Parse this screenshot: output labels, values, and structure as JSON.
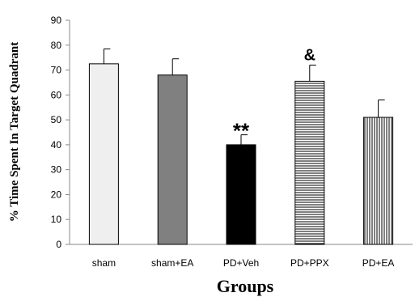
{
  "chart_data": {
    "type": "bar",
    "title": "",
    "xlabel": "Groups",
    "ylabel": "% Time Spent In Target Quadrant",
    "ylim": [
      0,
      90
    ],
    "yticks": [
      0,
      10,
      20,
      30,
      40,
      50,
      60,
      70,
      80,
      90
    ],
    "categories": [
      "sham",
      "sham+EA",
      "PD+Veh",
      "PD+PPX",
      "PD+EA"
    ],
    "values": [
      72.5,
      68,
      40,
      65.5,
      51
    ],
    "errors": [
      6,
      6.5,
      4,
      6.5,
      7
    ],
    "bar_styles": [
      "light-gray",
      "dark-gray",
      "black",
      "horizontal-stripes",
      "vertical-stripes"
    ],
    "annotations": [
      "",
      "",
      "**",
      "&",
      ""
    ],
    "grid": false,
    "legend": "none"
  },
  "colors": {
    "light_gray": "#efefef",
    "dark_gray": "#808080",
    "black": "#000000",
    "axis": "#888888"
  }
}
